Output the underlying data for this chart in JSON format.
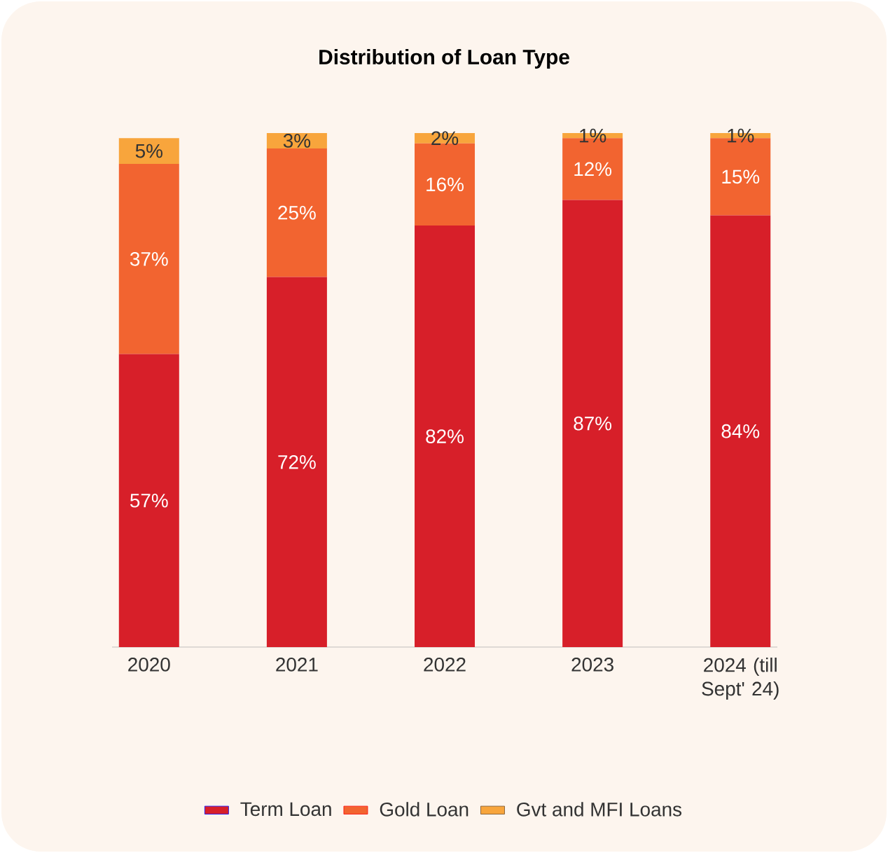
{
  "chart_data": {
    "type": "bar",
    "stacked": true,
    "title": "Distribution of Loan Type",
    "categories": [
      "2020",
      "2021",
      "2022",
      "2023",
      "2024 (till Sept' 24)"
    ],
    "ylim": [
      0,
      100
    ],
    "legend": "bottom",
    "series": [
      {
        "name": "Term Loan",
        "color": "#d71f29",
        "values": [
          57,
          72,
          82,
          87,
          84
        ],
        "value_labels": [
          "57%",
          "72%",
          "82%",
          "87%",
          "84%"
        ]
      },
      {
        "name": "Gold Loan",
        "color": "#f26430",
        "values": [
          37,
          25,
          16,
          12,
          15
        ],
        "value_labels": [
          "37%",
          "25%",
          "16%",
          "12%",
          "15%"
        ]
      },
      {
        "name": "Gvt and MFI Loans",
        "color": "#f8a53c",
        "values": [
          5,
          3,
          2,
          1,
          1
        ],
        "value_labels": [
          "5%",
          "3%",
          "2%",
          "1%",
          "1%"
        ]
      }
    ]
  }
}
